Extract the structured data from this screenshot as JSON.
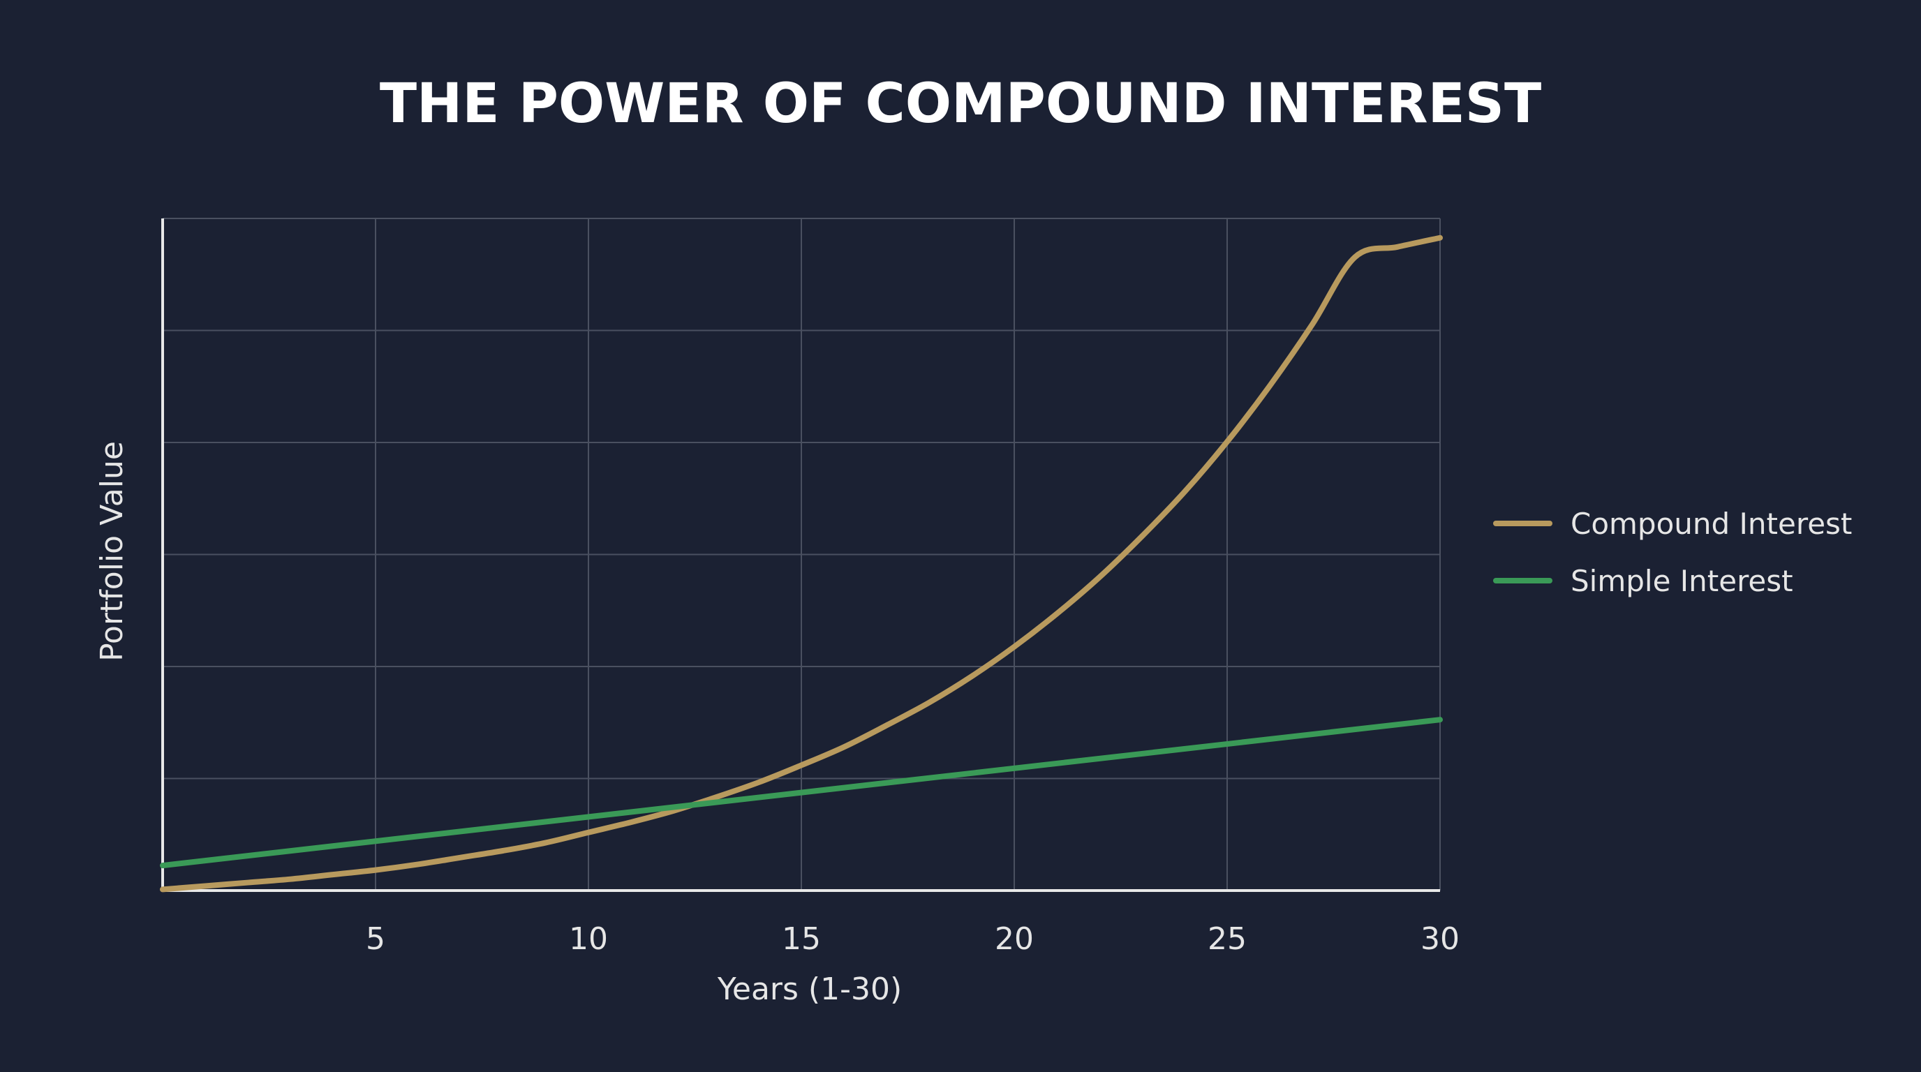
{
  "chart_data": {
    "type": "line",
    "title": "THE POWER OF COMPOUND INTEREST",
    "xlabel": "Years (1-30)",
    "ylabel": "Portfolio Value",
    "xlim": [
      0,
      30
    ],
    "ylim": [
      0,
      590
    ],
    "x_ticks": [
      5,
      10,
      15,
      20,
      25,
      30
    ],
    "grid": true,
    "legend_position": "right",
    "series": [
      {
        "name": "Compound Interest",
        "color": "#b89a5e",
        "x": [
          0,
          1,
          2,
          3,
          4,
          5,
          6,
          7,
          8,
          9,
          10,
          11,
          12,
          13,
          14,
          15,
          16,
          17,
          18,
          19,
          20,
          21,
          22,
          23,
          24,
          25,
          26,
          27,
          28,
          29,
          30
        ],
        "values": [
          1,
          4,
          7,
          10,
          14,
          18,
          23,
          29,
          35,
          42,
          51,
          60,
          70,
          82,
          95,
          110,
          126,
          145,
          165,
          188,
          214,
          243,
          275,
          311,
          350,
          394,
          443,
          497,
          556,
          565,
          573
        ]
      },
      {
        "name": "Simple Interest",
        "color": "#3a9a57",
        "x": [
          0,
          30
        ],
        "values": [
          22,
          150
        ]
      }
    ]
  }
}
